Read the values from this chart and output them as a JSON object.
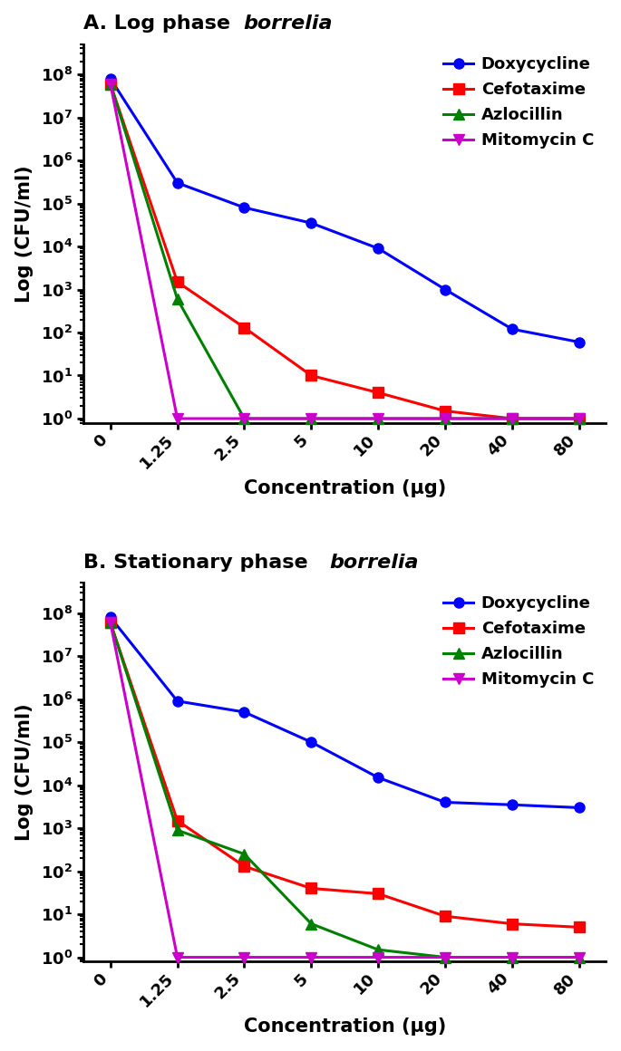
{
  "x_labels": [
    "0",
    "1.25",
    "2.5",
    "5",
    "10",
    "20",
    "40",
    "80"
  ],
  "x_values": [
    0,
    1,
    2,
    3,
    4,
    5,
    6,
    7
  ],
  "panel_A": {
    "title_normal": "A. Log phase ",
    "title_italic": "borrelia",
    "doxycycline": [
      80000000.0,
      300000.0,
      80000.0,
      35000.0,
      9000.0,
      1000,
      120,
      60
    ],
    "cefotaxime": [
      60000000.0,
      1500,
      130,
      10,
      4,
      1.5,
      1,
      1
    ],
    "azlocillin": [
      60000000.0,
      600,
      1,
      1,
      1,
      1,
      1,
      1
    ],
    "mitomycin": [
      60000000.0,
      1,
      1,
      1,
      1,
      1,
      1,
      1
    ]
  },
  "panel_B": {
    "title_normal": "B. Stationary phase ",
    "title_italic": "borrelia",
    "doxycycline": [
      80000000.0,
      900000.0,
      500000.0,
      100000.0,
      15000.0,
      4000,
      3500,
      3000
    ],
    "cefotaxime": [
      60000000.0,
      1500,
      130,
      40,
      30,
      9,
      6,
      5
    ],
    "azlocillin": [
      60000000.0,
      900,
      250,
      6,
      1.5,
      1,
      1,
      1
    ],
    "mitomycin": [
      60000000.0,
      1,
      1,
      1,
      1,
      1,
      1,
      1
    ]
  },
  "colors": {
    "doxycycline": "#0000FF",
    "cefotaxime": "#FF0000",
    "azlocillin": "#008000",
    "mitomycin": "#CC00CC"
  },
  "legend_labels": [
    "Doxycycline",
    "Cefotaxime",
    "Azlocillin",
    "Mitomycin C"
  ],
  "ylabel": "Log (CFU/ml)",
  "xlabel": "Concentration (μg)",
  "ylim": [
    0.8,
    500000000.0
  ],
  "background_color": "#ffffff"
}
